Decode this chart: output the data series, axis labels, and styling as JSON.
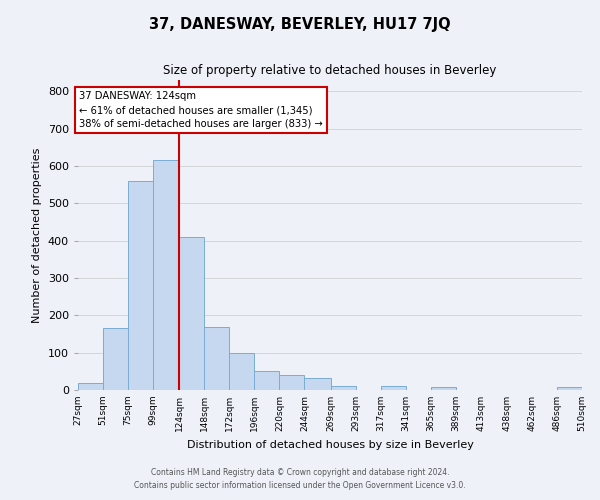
{
  "title": "37, DANESWAY, BEVERLEY, HU17 7JQ",
  "subtitle": "Size of property relative to detached houses in Beverley",
  "xlabel": "Distribution of detached houses by size in Beverley",
  "ylabel": "Number of detached properties",
  "bar_color": "#c5d8f0",
  "bar_edge_color": "#7aadd4",
  "bins": [
    27,
    51,
    75,
    99,
    124,
    148,
    172,
    196,
    220,
    244,
    269,
    293,
    317,
    341,
    365,
    389,
    413,
    438,
    462,
    486,
    510
  ],
  "counts": [
    20,
    165,
    560,
    615,
    410,
    170,
    100,
    50,
    40,
    33,
    12,
    0,
    10,
    0,
    8,
    0,
    0,
    0,
    0,
    8
  ],
  "tick_labels": [
    "27sqm",
    "51sqm",
    "75sqm",
    "99sqm",
    "124sqm",
    "148sqm",
    "172sqm",
    "196sqm",
    "220sqm",
    "244sqm",
    "269sqm",
    "293sqm",
    "317sqm",
    "341sqm",
    "365sqm",
    "389sqm",
    "413sqm",
    "438sqm",
    "462sqm",
    "486sqm",
    "510sqm"
  ],
  "property_value": 124,
  "vline_color": "#cc0000",
  "ylim": [
    0,
    830
  ],
  "yticks": [
    0,
    100,
    200,
    300,
    400,
    500,
    600,
    700,
    800
  ],
  "annotation_title": "37 DANESWAY: 124sqm",
  "annotation_line1": "← 61% of detached houses are smaller (1,345)",
  "annotation_line2": "38% of semi-detached houses are larger (833) →",
  "annotation_box_color": "#ffffff",
  "annotation_box_edge": "#cc0000",
  "footer1": "Contains HM Land Registry data © Crown copyright and database right 2024.",
  "footer2": "Contains public sector information licensed under the Open Government Licence v3.0.",
  "background_color": "#eef2f8",
  "grid_color": "#d0d0d0"
}
